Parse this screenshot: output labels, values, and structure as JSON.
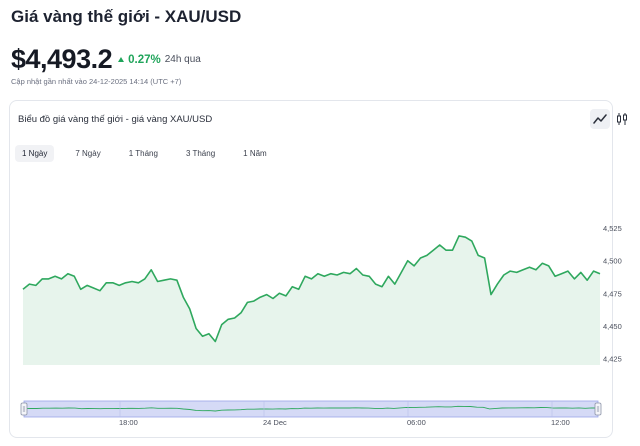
{
  "header": {
    "title": "Giá vàng thế giới - XAU/USD",
    "price": "$4,493.2",
    "change_pct": "0.27%",
    "change_period": "24h qua",
    "updated": "Cập nhật gần nhất vào 24-12-2025 14:14 (UTC +7)"
  },
  "card": {
    "title": "Biểu đồ giá vàng thế giới - giá vàng XAU/USD",
    "chart_type_buttons": [
      {
        "icon": "line-chart-icon",
        "active": true
      },
      {
        "icon": "candlestick-icon",
        "active": false
      }
    ],
    "tabs": [
      {
        "label": "1 Ngày",
        "active": true
      },
      {
        "label": "7 Ngày",
        "active": false
      },
      {
        "label": "1 Tháng",
        "active": false
      },
      {
        "label": "3 Tháng",
        "active": false
      },
      {
        "label": "1 Năm",
        "active": false
      }
    ]
  },
  "colors": {
    "line": "#2fa85e",
    "area": "#e7f4ec",
    "up": "#1fa45a",
    "navigator_fill": "#d5daf6",
    "navigator_handle": "#9aa5e8"
  },
  "chart_data": {
    "type": "area",
    "ylim": [
      4420,
      4535
    ],
    "y_ticks": [
      "4,525",
      "4,500",
      "4,475",
      "4,450",
      "4,425"
    ],
    "y_tick_values": [
      4525,
      4500,
      4475,
      4450,
      4425
    ],
    "navigator_x_ticks": [
      "18:00",
      "24 Dec",
      "06:00",
      "12:00"
    ],
    "values": [
      4478,
      4482,
      4481,
      4486,
      4486,
      4488,
      4486,
      4490,
      4488,
      4478,
      4481,
      4479,
      4477,
      4483,
      4483,
      4481,
      4483,
      4484,
      4483,
      4486,
      4493,
      4484,
      4485,
      4486,
      4485,
      4472,
      4463,
      4448,
      4442,
      4444,
      4438,
      4451,
      4455,
      4456,
      4460,
      4468,
      4469,
      4472,
      4474,
      4471,
      4475,
      4473,
      4480,
      4478,
      4488,
      4486,
      4490,
      4488,
      4490,
      4489,
      4491,
      4490,
      4494,
      4489,
      4488,
      4482,
      4480,
      4488,
      4482,
      4491,
      4500,
      4496,
      4502,
      4504,
      4508,
      4512,
      4508,
      4508,
      4519,
      4518,
      4515,
      4504,
      4502,
      4474,
      4482,
      4489,
      4492,
      4491,
      4493,
      4495,
      4493,
      4498,
      4496,
      4488,
      4490,
      4492,
      4486,
      4491,
      4485,
      4492,
      4490
    ]
  }
}
